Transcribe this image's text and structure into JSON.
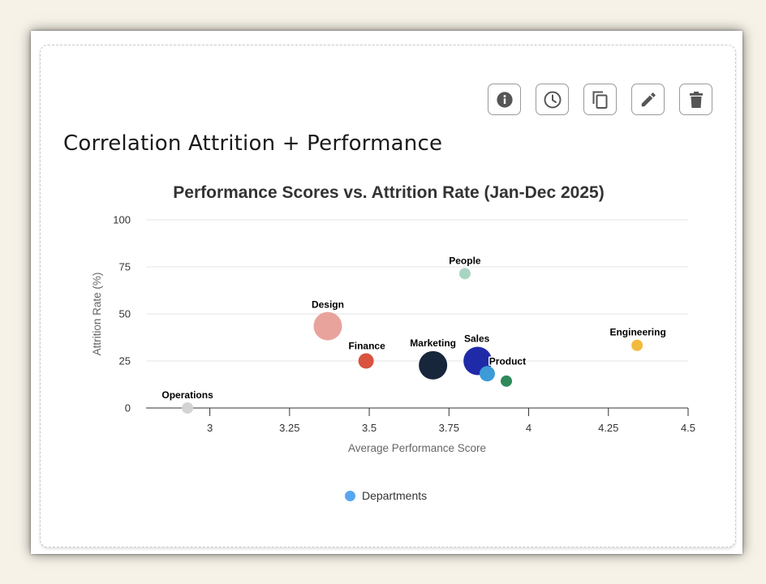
{
  "card": {
    "title": "Correlation Attrition + Performance"
  },
  "toolbar": [
    {
      "name": "info-button",
      "icon": "info-icon"
    },
    {
      "name": "history-button",
      "icon": "clock-icon"
    },
    {
      "name": "duplicate-button",
      "icon": "copy-icon"
    },
    {
      "name": "edit-button",
      "icon": "pencil-icon"
    },
    {
      "name": "delete-button",
      "icon": "trash-icon"
    }
  ],
  "chart_data": {
    "type": "scatter",
    "title": "Performance Scores vs. Attrition Rate (Jan-Dec 2025)",
    "xlabel": "Average Performance Score",
    "ylabel": "Attrition Rate (%)",
    "xlim": [
      2.8,
      4.5
    ],
    "ylim": [
      0,
      100
    ],
    "x_ticks": [
      3,
      3.25,
      3.5,
      3.75,
      4,
      4.25,
      4.5
    ],
    "x_tick_labels": [
      "3",
      "3.25",
      "3.5",
      "3.75",
      "4",
      "4.25",
      "4.5"
    ],
    "y_ticks": [
      0,
      25,
      50,
      75,
      100
    ],
    "y_tick_labels": [
      "0",
      "25",
      "50",
      "75",
      "100"
    ],
    "grid": "horizontal",
    "legend": {
      "position": "bottom",
      "label": "Departments",
      "color": "#58a6ee"
    },
    "points": [
      {
        "label": "Operations",
        "x": 2.93,
        "y": 0,
        "size": "small",
        "color": "#d3d3d3"
      },
      {
        "label": "Design",
        "x": 3.37,
        "y": 43.5,
        "size": "large",
        "color": "#e8a49c"
      },
      {
        "label": "Finance",
        "x": 3.49,
        "y": 25,
        "size": "medium",
        "color": "#d9533f"
      },
      {
        "label": "People",
        "x": 3.8,
        "y": 71.4,
        "size": "small",
        "color": "#a8d5c2"
      },
      {
        "label": "Marketing",
        "x": 3.7,
        "y": 22.7,
        "size": "large",
        "color": "#17263b"
      },
      {
        "label": "Sales",
        "x": 3.84,
        "y": 25,
        "size": "large",
        "color": "#1f2aa8"
      },
      {
        "label": "Product",
        "x": 3.87,
        "y": 18.2,
        "size": "medium",
        "color": "#3d9bd8"
      },
      {
        "label": "Product",
        "x": 3.93,
        "y": 14.3,
        "size": "small",
        "color": "#2e8a5b",
        "show_label": false
      },
      {
        "label": "Engineering",
        "x": 4.34,
        "y": 33.3,
        "size": "small",
        "color": "#f2bb3d"
      }
    ]
  }
}
